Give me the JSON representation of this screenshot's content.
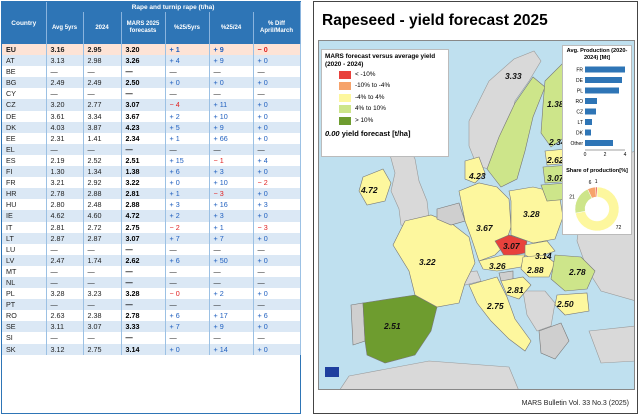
{
  "table": {
    "group_header": "Rape and turnip rape (t/ha)",
    "headers": [
      "Country",
      "Avg 5yrs",
      "2024",
      "MARS 2025 forecasts",
      "%25/5yrs",
      "%25/24",
      "% Diff April/March"
    ],
    "rows": [
      {
        "country": "EU",
        "avg": "3.16",
        "y2024": "2.95",
        "fc": "3.20",
        "p5": "+ 1",
        "p24": "+ 9",
        "diff": "− 0"
      },
      {
        "country": "AT",
        "avg": "3.13",
        "y2024": "2.98",
        "fc": "3.26",
        "p5": "+ 4",
        "p24": "+ 9",
        "diff": "+ 0"
      },
      {
        "country": "BE",
        "avg": "—",
        "y2024": "—",
        "fc": "—",
        "p5": "—",
        "p24": "—",
        "diff": "—"
      },
      {
        "country": "BG",
        "avg": "2.49",
        "y2024": "2.49",
        "fc": "2.50",
        "p5": "+ 0",
        "p24": "+ 0",
        "diff": "+ 0"
      },
      {
        "country": "CY",
        "avg": "—",
        "y2024": "—",
        "fc": "—",
        "p5": "—",
        "p24": "—",
        "diff": "—"
      },
      {
        "country": "CZ",
        "avg": "3.20",
        "y2024": "2.77",
        "fc": "3.07",
        "p5": "− 4",
        "p24": "+ 11",
        "diff": "+ 0"
      },
      {
        "country": "DE",
        "avg": "3.61",
        "y2024": "3.34",
        "fc": "3.67",
        "p5": "+ 2",
        "p24": "+ 10",
        "diff": "+ 0"
      },
      {
        "country": "DK",
        "avg": "4.03",
        "y2024": "3.87",
        "fc": "4.23",
        "p5": "+ 5",
        "p24": "+ 9",
        "diff": "+ 0"
      },
      {
        "country": "EE",
        "avg": "2.31",
        "y2024": "1.41",
        "fc": "2.34",
        "p5": "+ 1",
        "p24": "+ 66",
        "diff": "+ 0"
      },
      {
        "country": "EL",
        "avg": "—",
        "y2024": "—",
        "fc": "—",
        "p5": "—",
        "p24": "—",
        "diff": "—"
      },
      {
        "country": "ES",
        "avg": "2.19",
        "y2024": "2.52",
        "fc": "2.51",
        "p5": "+ 15",
        "p24": "− 1",
        "diff": "+ 4"
      },
      {
        "country": "FI",
        "avg": "1.30",
        "y2024": "1.34",
        "fc": "1.38",
        "p5": "+ 6",
        "p24": "+ 3",
        "diff": "+ 0"
      },
      {
        "country": "FR",
        "avg": "3.21",
        "y2024": "2.92",
        "fc": "3.22",
        "p5": "+ 0",
        "p24": "+ 10",
        "diff": "− 2"
      },
      {
        "country": "HR",
        "avg": "2.78",
        "y2024": "2.88",
        "fc": "2.81",
        "p5": "+ 1",
        "p24": "− 3",
        "diff": "+ 0"
      },
      {
        "country": "HU",
        "avg": "2.80",
        "y2024": "2.48",
        "fc": "2.88",
        "p5": "+ 3",
        "p24": "+ 16",
        "diff": "+ 3"
      },
      {
        "country": "IE",
        "avg": "4.62",
        "y2024": "4.60",
        "fc": "4.72",
        "p5": "+ 2",
        "p24": "+ 3",
        "diff": "+ 0"
      },
      {
        "country": "IT",
        "avg": "2.81",
        "y2024": "2.72",
        "fc": "2.75",
        "p5": "− 2",
        "p24": "+ 1",
        "diff": "− 3"
      },
      {
        "country": "LT",
        "avg": "2.87",
        "y2024": "2.87",
        "fc": "3.07",
        "p5": "+ 7",
        "p24": "+ 7",
        "diff": "+ 0"
      },
      {
        "country": "LU",
        "avg": "—",
        "y2024": "—",
        "fc": "—",
        "p5": "—",
        "p24": "—",
        "diff": "—"
      },
      {
        "country": "LV",
        "avg": "2.47",
        "y2024": "1.74",
        "fc": "2.62",
        "p5": "+ 6",
        "p24": "+ 50",
        "diff": "+ 0"
      },
      {
        "country": "MT",
        "avg": "—",
        "y2024": "—",
        "fc": "—",
        "p5": "—",
        "p24": "—",
        "diff": "—"
      },
      {
        "country": "NL",
        "avg": "—",
        "y2024": "—",
        "fc": "—",
        "p5": "—",
        "p24": "—",
        "diff": "—"
      },
      {
        "country": "PL",
        "avg": "3.28",
        "y2024": "3.23",
        "fc": "3.28",
        "p5": "− 0",
        "p24": "+ 2",
        "diff": "+ 0"
      },
      {
        "country": "PT",
        "avg": "—",
        "y2024": "—",
        "fc": "—",
        "p5": "—",
        "p24": "—",
        "diff": "—"
      },
      {
        "country": "RO",
        "avg": "2.63",
        "y2024": "2.38",
        "fc": "2.78",
        "p5": "+ 6",
        "p24": "+ 17",
        "diff": "+ 6"
      },
      {
        "country": "SE",
        "avg": "3.11",
        "y2024": "3.07",
        "fc": "3.33",
        "p5": "+ 7",
        "p24": "+ 9",
        "diff": "+ 0"
      },
      {
        "country": "SI",
        "avg": "—",
        "y2024": "—",
        "fc": "—",
        "p5": "—",
        "p24": "—",
        "diff": "—"
      },
      {
        "country": "SK",
        "avg": "3.12",
        "y2024": "2.75",
        "fc": "3.14",
        "p5": "+ 0",
        "p24": "+ 14",
        "diff": "+ 0"
      }
    ]
  },
  "panel": {
    "title": "Rapeseed - yield forecast 2025",
    "bulletin": "MARS Bulletin Vol. 33 No.3 (2025)"
  },
  "legend": {
    "title": "MARS forecast versus average yield (2020 - 2024)",
    "items": [
      {
        "label": "< -10%",
        "color": "#e8413c"
      },
      {
        "label": "-10% to -4%",
        "color": "#f6a36b"
      },
      {
        "label": "-4% to 4%",
        "color": "#fdf79e"
      },
      {
        "label": "4% to 10%",
        "color": "#cde58a"
      },
      {
        "label": "> 10%",
        "color": "#6e9c2f"
      }
    ],
    "forecast_value": "0.00",
    "forecast_label": "yield forecast [t/ha]"
  },
  "colors": {
    "table_header": "#2e75b6",
    "bar": "#2e75b6",
    "sea": "#bfe0ef",
    "no_data": "#cfcfcf"
  },
  "map_labels": [
    {
      "country": "FR",
      "value": "3.22"
    },
    {
      "country": "ES",
      "value": "2.51"
    },
    {
      "country": "IE",
      "value": "4.72"
    },
    {
      "country": "DE",
      "value": "3.67"
    },
    {
      "country": "PL",
      "value": "3.28"
    },
    {
      "country": "SE",
      "value": "3.33"
    },
    {
      "country": "FI",
      "value": "1.38"
    },
    {
      "country": "EE",
      "value": "2.34"
    },
    {
      "country": "LV",
      "value": "2.62"
    },
    {
      "country": "LT",
      "value": "3.07"
    },
    {
      "country": "DK",
      "value": "4.23"
    },
    {
      "country": "CZ",
      "value": "3.07"
    },
    {
      "country": "SK",
      "value": "3.14"
    },
    {
      "country": "AT",
      "value": "3.26"
    },
    {
      "country": "HU",
      "value": "2.88"
    },
    {
      "country": "RO",
      "value": "2.78"
    },
    {
      "country": "BG",
      "value": "2.50"
    },
    {
      "country": "HR",
      "value": "2.81"
    },
    {
      "country": "IT",
      "value": "2.75"
    }
  ],
  "chart_data": [
    {
      "type": "bar",
      "title": "Avg. Production (2020-2024) [Mt]",
      "orientation": "horizontal",
      "categories": [
        "FR",
        "DE",
        "PL",
        "RO",
        "CZ",
        "LT",
        "DK",
        "Other"
      ],
      "values": [
        4.0,
        3.7,
        3.4,
        1.2,
        1.1,
        0.7,
        0.6,
        2.8
      ],
      "xlim": [
        0,
        4
      ],
      "xticks": [
        "0",
        "2",
        "4"
      ]
    },
    {
      "type": "pie",
      "title": "Share of production[%]",
      "slices": [
        {
          "label": "72",
          "value": 72,
          "color": "#fdf79e"
        },
        {
          "label": "21",
          "value": 21,
          "color": "#cde58a"
        },
        {
          "label": "6",
          "value": 6,
          "color": "#f6a36b"
        },
        {
          "label": "1",
          "value": 1,
          "color": "#e8413c"
        }
      ]
    }
  ]
}
